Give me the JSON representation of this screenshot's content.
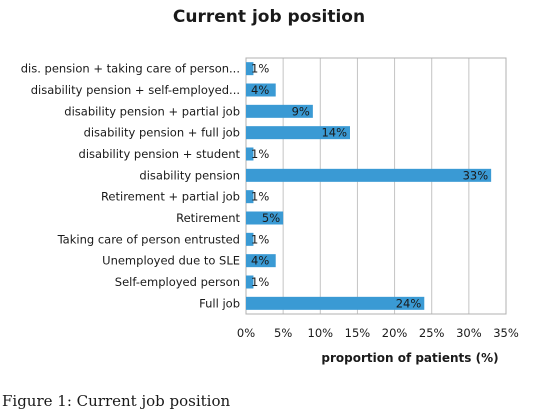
{
  "chart_data": {
    "type": "bar",
    "orientation": "horizontal",
    "title": "Current job position",
    "xlabel": "proportion of patients (%)",
    "ylabel": "",
    "xlim": [
      0,
      35
    ],
    "x_ticks": [
      "0%",
      "5%",
      "10%",
      "15%",
      "20%",
      "25%",
      "30%",
      "35%"
    ],
    "grid": true,
    "bar_color": "#3A9AD4",
    "categories": [
      "dis. pension + taking care of person...",
      "disability pension + self-employed...",
      "disability pension + partial job",
      "disability pension + full job",
      "disability pension + student",
      "disability pension",
      "Retirement + partial job",
      "Retirement",
      "Taking care of person entrusted",
      "Unemployed due to SLE",
      "Self-employed person",
      "Full job"
    ],
    "values": [
      1,
      4,
      9,
      14,
      1,
      33,
      1,
      5,
      1,
      4,
      1,
      24
    ],
    "value_labels": [
      "1%",
      "4%",
      "9%",
      "14%",
      "1%",
      "33%",
      "1%",
      "5%",
      "1%",
      "4%",
      "1%",
      "24%"
    ]
  },
  "caption": {
    "label": "Figure 1:",
    "text": " Current job position"
  }
}
